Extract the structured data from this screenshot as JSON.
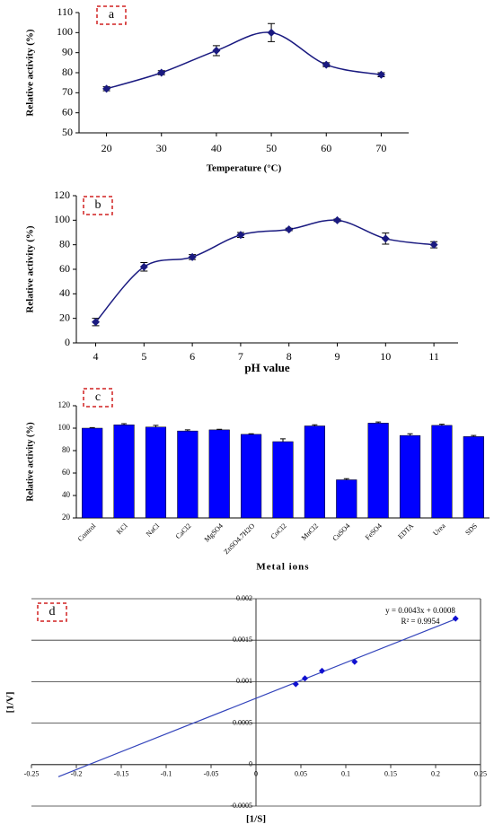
{
  "chart_data": [
    {
      "type": "line",
      "panel_label": "a",
      "y_label": "Relative activity (%)",
      "x_label": "Temperature (°C)",
      "x": [
        20,
        30,
        40,
        50,
        60,
        70
      ],
      "xlim": [
        15,
        75
      ],
      "xticks": [
        20,
        30,
        40,
        50,
        60,
        70
      ],
      "ylim": [
        50,
        110
      ],
      "yticks": [
        50,
        60,
        70,
        80,
        90,
        100,
        110
      ],
      "series": [
        {
          "color": "#1a1a80",
          "values": [
            72,
            80,
            91,
            100,
            84,
            79
          ],
          "errors": [
            1,
            1,
            2.5,
            4.5,
            1,
            1
          ]
        }
      ]
    },
    {
      "type": "line",
      "panel_label": "b",
      "y_label": "Relative activity (%)",
      "x_label": "pH value",
      "x": [
        4,
        5,
        6,
        7,
        8,
        9,
        10,
        11
      ],
      "xlim": [
        3.6,
        11.5
      ],
      "xticks": [
        4,
        5,
        6,
        7,
        8,
        9,
        10,
        11
      ],
      "ylim": [
        0,
        120
      ],
      "yticks": [
        0,
        20,
        40,
        60,
        80,
        100,
        120
      ],
      "series": [
        {
          "color": "#1a1a80",
          "values": [
            17,
            62,
            70,
            88,
            92.5,
            100,
            85,
            80
          ],
          "errors": [
            3,
            3.5,
            2,
            2,
            1,
            1,
            4.5,
            2.5
          ]
        }
      ]
    },
    {
      "type": "bar",
      "panel_label": "c",
      "y_label": "Relative activity (%)",
      "x_label": "Metal ions",
      "categories": [
        "Control",
        "KCl",
        "NaCl",
        "CaCl2",
        "MgSO4",
        "ZnSO4.7H2O",
        "CoCl2",
        "MnCl2",
        "CuSO4",
        "FeSO4",
        "EDTA",
        "Urea",
        "SDS"
      ],
      "values": [
        100,
        103,
        101,
        97.5,
        98.5,
        94.5,
        88,
        102,
        54,
        104.5,
        93.5,
        102.5,
        92.5
      ],
      "errors": [
        0.5,
        1,
        1.5,
        1,
        0.5,
        0.5,
        2.5,
        1,
        1,
        1,
        1.5,
        1,
        1
      ],
      "color": "#0000ff",
      "ylim": [
        20,
        120
      ],
      "yticks": [
        20,
        40,
        60,
        80,
        100,
        120
      ]
    },
    {
      "type": "scatter",
      "panel_label": "d",
      "y_label": "[1/V]",
      "x_label": "[1/S]",
      "annotations": [
        "y = 0.0043x + 0.0008",
        "R² = 0.9954"
      ],
      "x": [
        0.0443,
        0.0545,
        0.0735,
        0.1098,
        0.2222
      ],
      "values": [
        0.00097,
        0.00104,
        0.00113,
        0.00124,
        0.00176
      ],
      "color": "#1010d0",
      "trendline": {
        "color": "#3344bb",
        "x": [
          -0.22,
          0.2222
        ],
        "values": [
          -0.000146,
          0.001755
        ]
      },
      "xlim": [
        -0.25,
        0.25
      ],
      "xticks": [
        -0.25,
        -0.2,
        -0.15,
        -0.1,
        -0.05,
        0,
        0.05,
        0.1,
        0.15,
        0.2,
        0.25
      ],
      "ylim": [
        -0.0005,
        0.002
      ],
      "yticks": [
        -0.0005,
        0,
        0.0005,
        0.001,
        0.0015,
        0.002
      ],
      "grid": true
    }
  ]
}
